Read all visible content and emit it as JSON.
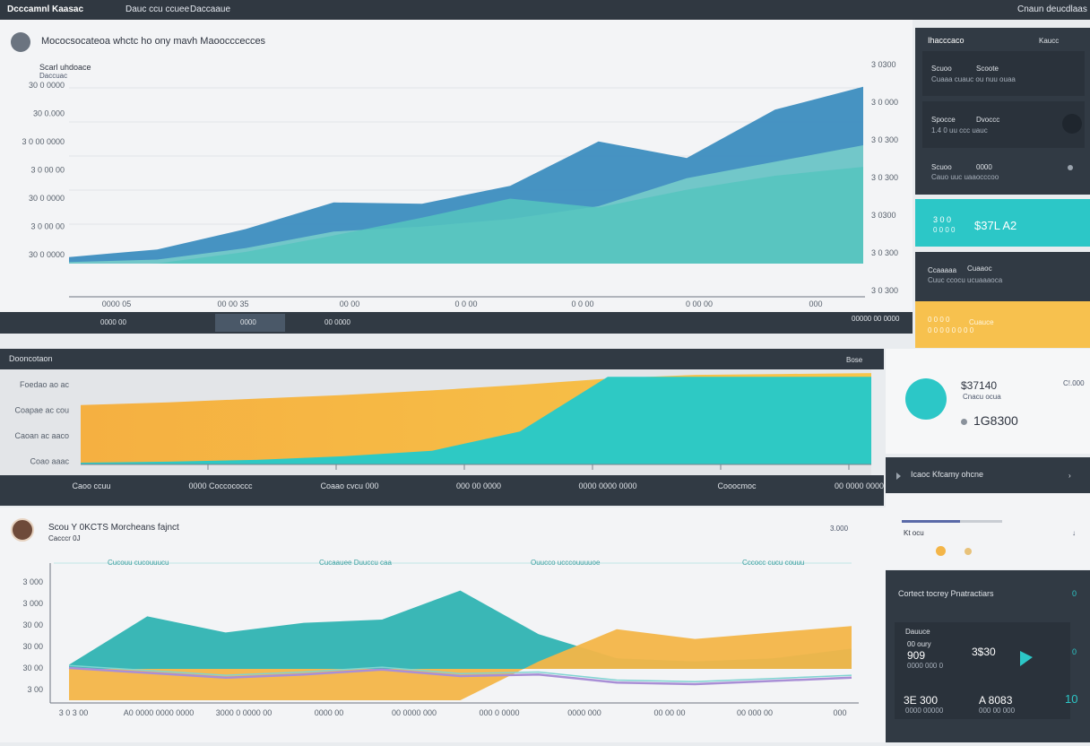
{
  "topbar": {
    "app_title": "Dcccamnl Kaasac",
    "tab_one": "Dauc ccu ccuee",
    "tab_two": "Daccaaue",
    "right_text": "Cnaun deucdlaas"
  },
  "chart_top": {
    "title": "Mococsocateoa whctc ho ony mavh Maoocccecces",
    "subtitle": "Scarl uhdoace",
    "subtitle2": "Daccuac",
    "header_value": "30 0 0000",
    "y_left_ticks": [
      "30 0 0000",
      "30 0.000",
      "3 0 00 0000",
      "3 0 00 00",
      "30 0 0000",
      "3 0 00 00",
      "30 0 0000"
    ],
    "y_right_ticks": [
      "3 0300",
      "3 0 000",
      "3 0 300",
      "3 0 300",
      "3 0300",
      "3 0 300",
      "3 0 300"
    ],
    "x_ticks": [
      "0000 05",
      "00 00 35",
      "00 00",
      "0 0 00",
      "0 0 00",
      "0 00 00",
      "000"
    ],
    "footer_labels": [
      "0000 00",
      "0000",
      "00 0000",
      "00000 00 0000"
    ],
    "chart_data": {
      "type": "area",
      "series": [
        {
          "name": "",
          "color": "#3c8dbf",
          "values": [
            3.2,
            3.8,
            5.4,
            7.5,
            7.4,
            8.8,
            12.3,
            11.0,
            14.8,
            16.6
          ]
        },
        {
          "name": "",
          "color": "#7dd5cb",
          "values": [
            2.8,
            3.0,
            3.9,
            5.2,
            5.6,
            6.2,
            7.2,
            9.4,
            10.7,
            12.0
          ]
        },
        {
          "name": "",
          "color": "#55c4be",
          "values": [
            2.5,
            2.7,
            3.6,
            4.9,
            6.3,
            7.8,
            7.1,
            8.5,
            9.6,
            10.3
          ]
        }
      ]
    }
  },
  "sidebar_right": {
    "title": "Ihacccaco",
    "title_right": "Kaucc",
    "cards": [
      {
        "label": "Scuoo",
        "label2": "Scoote",
        "sub": "Cuaaa cuauc ou nuu ouaa"
      },
      {
        "label": "Spocce",
        "label2": "Dvoccc",
        "sub": "1.4 0 uu ccc uauc"
      },
      {
        "label": "Scuoo",
        "label2": "0000",
        "sub": "Cauo uuc uaaocccoo"
      }
    ],
    "teal_card": {
      "label": "3 0 0",
      "sub": "0 0 0 0",
      "value": "$37L A2"
    },
    "dark_card": {
      "label": "Ccaaaaa",
      "label2": "Cuaaoc",
      "sub": "Cuuc ccocu ucuaaaoca"
    },
    "yellow_card": {
      "label": "0 0 0 0",
      "label2": "Cuauce",
      "sub": "0 0 0 0 0 0 0 0"
    }
  },
  "kpi_panel": {
    "value1": "$37140",
    "label1": "Cnacu ocua",
    "right_label": "C!.000",
    "value2": "1G8300"
  },
  "middle_chart": {
    "title": "Dooncotaon",
    "right_label": "Bose",
    "y_ticks": [
      "Foedao ao ac",
      "Coapae ac cou",
      "Caoan ac aaco",
      "Coao aaac"
    ],
    "x_ticks": [
      "Caoo ccuu",
      "0000 Coccococcc",
      "Coaao cvcu 000",
      "000 00 0000",
      "0000 0000 0000",
      "Cooocmoc",
      "00 0000 0000000"
    ],
    "chart_data": {
      "type": "area",
      "series": [
        {
          "name": "",
          "color": "#f3b548",
          "values": [
            6.5,
            6.8,
            7.2,
            7.6,
            8.1,
            8.7,
            9.4,
            9.8,
            9.9,
            10.0
          ]
        },
        {
          "name": "",
          "color": "#2ec9c4",
          "values": [
            0.2,
            0.3,
            0.5,
            0.9,
            1.5,
            3.6,
            9.6,
            9.6,
            9.6,
            9.6
          ]
        }
      ]
    }
  },
  "right_mid": {
    "header": "Icaoc Kfcamy ohcne",
    "progress_label": "Kt ocu",
    "progress_value": 0.58
  },
  "bottom_chart": {
    "title": "Scou Y 0KCTS Morcheans fajnct",
    "subtitle": "Cacccr 0J",
    "right_value": "3.000",
    "legend": [
      "Cucouu cucouuucu",
      "Cucaauee Duuccu caa",
      "Ouucco ucccouuuuoe",
      "Cccocc cucu couuu"
    ],
    "y_ticks": [
      "3 000",
      "3 000",
      "30 00",
      "30 00",
      "30 00",
      "3 00"
    ],
    "x_ticks": [
      "3 0 3 00",
      "A0 0000 0000 0000",
      "3000 0 0000 00",
      "0000 00",
      "00 0000 000",
      "000 0 0000",
      "0000 000",
      "00 00 00",
      "00 000 00",
      "000"
    ],
    "chart_data": {
      "type": "area",
      "series": [
        {
          "name": "",
          "color": "#3ab7b6",
          "values": [
            2.2,
            5.2,
            4.2,
            4.8,
            5.0,
            6.8,
            4.1,
            2.6,
            2.4,
            2.6,
            3.2
          ]
        },
        {
          "name": "",
          "color": "#f3b548",
          "values": [
            0.0,
            0.0,
            0.0,
            0.0,
            0.0,
            0.0,
            2.4,
            4.4,
            3.8,
            4.2,
            4.6
          ]
        },
        {
          "name": "",
          "color": "#a98fd6",
          "values": [
            2.0,
            1.7,
            1.4,
            1.6,
            1.9,
            1.5,
            1.6,
            1.1,
            1.0,
            1.2,
            1.4
          ]
        }
      ]
    }
  },
  "bottom_right": {
    "title": "Cortect tocrey Pnatractiars",
    "sub1": "Dauuce",
    "sub2": "00 oury",
    "big1": "909",
    "small1": "0000 000 0",
    "value1": "3$30",
    "value2": "3E 300",
    "small2": "0000 00000",
    "value3": "A 8083",
    "small3": "000 00 000",
    "value4": "10"
  }
}
